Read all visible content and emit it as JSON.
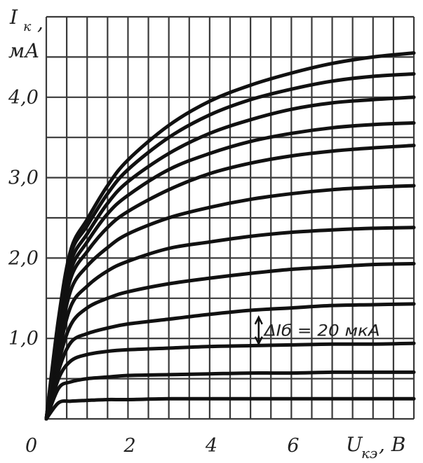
{
  "chart_data": {
    "type": "line",
    "ylabel_top": "I",
    "ylabel_sub": "к",
    "ylabel_comma": ",",
    "yunit": "мА",
    "xlabel_main": "U",
    "xlabel_sub": "кэ",
    "xlabel_unit": ", В",
    "x_ticks": [
      "0",
      "2",
      "4",
      "6"
    ],
    "x_tick_values": [
      0,
      2,
      4,
      6
    ],
    "y_ticks": [
      "1,0",
      "2,0",
      "3,0",
      "4,0"
    ],
    "y_tick_values": [
      1.0,
      2.0,
      3.0,
      4.0
    ],
    "xlim": [
      0,
      9
    ],
    "ylim": [
      0,
      5
    ],
    "grid": true,
    "annotation": "ΔIб = 20 мкА",
    "annotation_value": 0.45,
    "annotation_x": 5.2,
    "x": [
      0,
      0.3,
      0.6,
      1,
      1.5,
      2,
      3,
      4,
      5,
      6,
      7,
      8,
      9
    ],
    "series": [
      {
        "values": [
          0,
          0.2,
          0.22,
          0.23,
          0.24,
          0.24,
          0.25,
          0.25,
          0.25,
          0.25,
          0.25,
          0.25,
          0.25
        ]
      },
      {
        "values": [
          0,
          0.38,
          0.46,
          0.5,
          0.52,
          0.54,
          0.55,
          0.56,
          0.57,
          0.57,
          0.58,
          0.58,
          0.58
        ]
      },
      {
        "values": [
          0,
          0.5,
          0.72,
          0.8,
          0.84,
          0.86,
          0.88,
          0.9,
          0.91,
          0.92,
          0.93,
          0.93,
          0.94
        ]
      },
      {
        "values": [
          0,
          0.6,
          0.95,
          1.06,
          1.13,
          1.18,
          1.24,
          1.3,
          1.35,
          1.38,
          1.41,
          1.42,
          1.43
        ]
      },
      {
        "values": [
          0,
          0.7,
          1.17,
          1.38,
          1.5,
          1.58,
          1.68,
          1.75,
          1.81,
          1.86,
          1.89,
          1.92,
          1.93
        ]
      },
      {
        "values": [
          0,
          0.8,
          1.4,
          1.65,
          1.84,
          1.96,
          2.12,
          2.2,
          2.27,
          2.32,
          2.35,
          2.37,
          2.38
        ]
      },
      {
        "values": [
          0,
          0.9,
          1.6,
          1.9,
          2.13,
          2.3,
          2.5,
          2.63,
          2.73,
          2.8,
          2.85,
          2.88,
          2.9
        ]
      },
      {
        "values": [
          0,
          1.0,
          1.75,
          2.08,
          2.38,
          2.58,
          2.85,
          3.05,
          3.18,
          3.27,
          3.33,
          3.37,
          3.4
        ]
      },
      {
        "values": [
          0,
          1.08,
          1.85,
          2.2,
          2.55,
          2.78,
          3.1,
          3.3,
          3.45,
          3.55,
          3.62,
          3.66,
          3.68
        ]
      },
      {
        "values": [
          0,
          1.15,
          1.95,
          2.3,
          2.68,
          2.95,
          3.3,
          3.55,
          3.72,
          3.85,
          3.93,
          3.97,
          4.0
        ]
      },
      {
        "values": [
          0,
          1.2,
          2.05,
          2.4,
          2.8,
          3.1,
          3.5,
          3.78,
          3.97,
          4.1,
          4.2,
          4.26,
          4.29
        ]
      },
      {
        "values": [
          0,
          1.25,
          2.1,
          2.48,
          2.9,
          3.22,
          3.65,
          3.95,
          4.15,
          4.3,
          4.42,
          4.5,
          4.55
        ]
      }
    ]
  }
}
